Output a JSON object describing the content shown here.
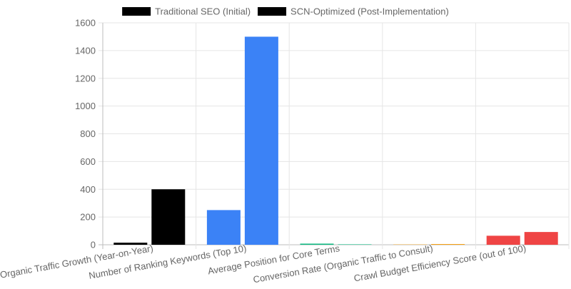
{
  "chart_data": {
    "type": "bar",
    "categories": [
      "Organic Traffic Growth (Year-on-Year)",
      "Number of Ranking Keywords (Top 10)",
      "Average Position for Core Terms",
      "Conversion Rate (Organic Traffic to Consult)",
      "Crawl Budget Efficiency Score (out of 100)"
    ],
    "series": [
      {
        "name": "Traditional SEO (Initial)",
        "legend_color": "#000000",
        "values": [
          15,
          250,
          8,
          2,
          65
        ]
      },
      {
        "name": "SCN-Optimized (Post-Implementation)",
        "legend_color": "#000000",
        "values": [
          400,
          1500,
          3,
          5,
          92
        ]
      }
    ],
    "category_colors": [
      "#000000",
      "#3b82f6",
      "#10b981",
      "#f59e0b",
      "#ef4444"
    ],
    "ylim": [
      0,
      1600
    ],
    "yticks": [
      0,
      200,
      400,
      600,
      800,
      1000,
      1200,
      1400,
      1600
    ],
    "grid": true,
    "legend_position": "top-center"
  }
}
